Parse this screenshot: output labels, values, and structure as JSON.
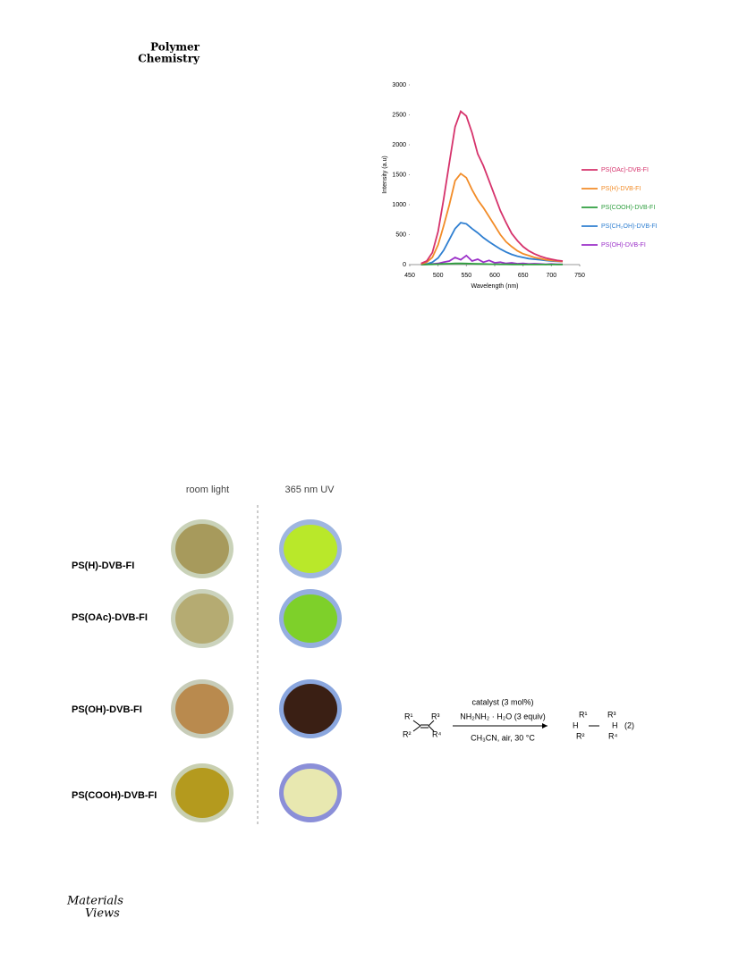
{
  "header": {
    "journal_line1": "Polymer",
    "journal_line2": "Chemistry"
  },
  "chart_data": {
    "type": "line",
    "y_label": "Intensity (a.u)",
    "x_label": "Wavelength (nm)",
    "x": [
      470,
      480,
      490,
      500,
      510,
      520,
      530,
      540,
      550,
      560,
      570,
      580,
      590,
      600,
      610,
      620,
      630,
      640,
      650,
      660,
      670,
      680,
      690,
      700,
      710,
      720
    ],
    "xlim": [
      450,
      750
    ],
    "xticks": [
      450,
      500,
      550,
      600,
      650,
      700,
      750
    ],
    "ylim": [
      0,
      3000
    ],
    "yticks": [
      0,
      500,
      1000,
      1500,
      2000,
      2500,
      3000
    ],
    "series": [
      {
        "name": "PS(OAc)-DVB-FI",
        "color": "#d6336c",
        "values": [
          20,
          60,
          200,
          550,
          1100,
          1700,
          2300,
          2560,
          2480,
          2200,
          1850,
          1650,
          1400,
          1150,
          900,
          700,
          520,
          400,
          300,
          230,
          180,
          140,
          110,
          90,
          70,
          60
        ]
      },
      {
        "name": "PS(H)-DVB-FI",
        "color": "#f28c28",
        "values": [
          10,
          40,
          120,
          330,
          650,
          1000,
          1400,
          1520,
          1450,
          1250,
          1080,
          950,
          800,
          650,
          500,
          380,
          300,
          230,
          180,
          150,
          120,
          100,
          80,
          70,
          60,
          50
        ]
      },
      {
        "name": "PS(COOH)-DVB-FI",
        "color": "#2e9e3e",
        "values": [
          0,
          2,
          5,
          8,
          12,
          15,
          20,
          20,
          18,
          15,
          12,
          10,
          8,
          6,
          5,
          4,
          3,
          3,
          2,
          2,
          2,
          1,
          1,
          1,
          1,
          1
        ]
      },
      {
        "name": "PS(CH₂OH)-DVB-FI",
        "color": "#2f7fd1",
        "values": [
          0,
          10,
          40,
          110,
          240,
          420,
          600,
          700,
          680,
          600,
          530,
          450,
          380,
          320,
          260,
          210,
          170,
          140,
          120,
          100,
          90,
          80,
          70,
          60,
          55,
          50
        ]
      },
      {
        "name": "PS(OH)-DVB-FI",
        "color": "#9b30c8",
        "values": [
          0,
          5,
          10,
          20,
          40,
          60,
          120,
          80,
          150,
          60,
          90,
          40,
          70,
          30,
          40,
          20,
          30,
          15,
          20,
          10,
          15,
          10,
          5,
          10,
          5,
          5
        ]
      }
    ]
  },
  "photo_figure": {
    "columns": [
      "room light",
      "365 nm UV"
    ],
    "rows": [
      "PS(H)-DVB-FI",
      "PS(OAc)-DVB-FI",
      "PS(OH)-DVB-FI",
      "PS(COOH)-DVB-FI"
    ]
  },
  "scheme": {
    "reactant": [
      "R¹",
      "R³",
      "R²",
      "R⁴"
    ],
    "conditions_above": [
      "catalyst (3 mol%)",
      "NH₂NH₂ · H₂O (3 equiv)"
    ],
    "conditions_below": "CH₃CN, air, 30 °C",
    "product": [
      "R¹",
      "R³",
      "H",
      "H",
      "R²",
      "R⁴"
    ],
    "number": "(2)"
  },
  "footer": {
    "logo_line1": "Materials",
    "logo_line2": "Views"
  }
}
